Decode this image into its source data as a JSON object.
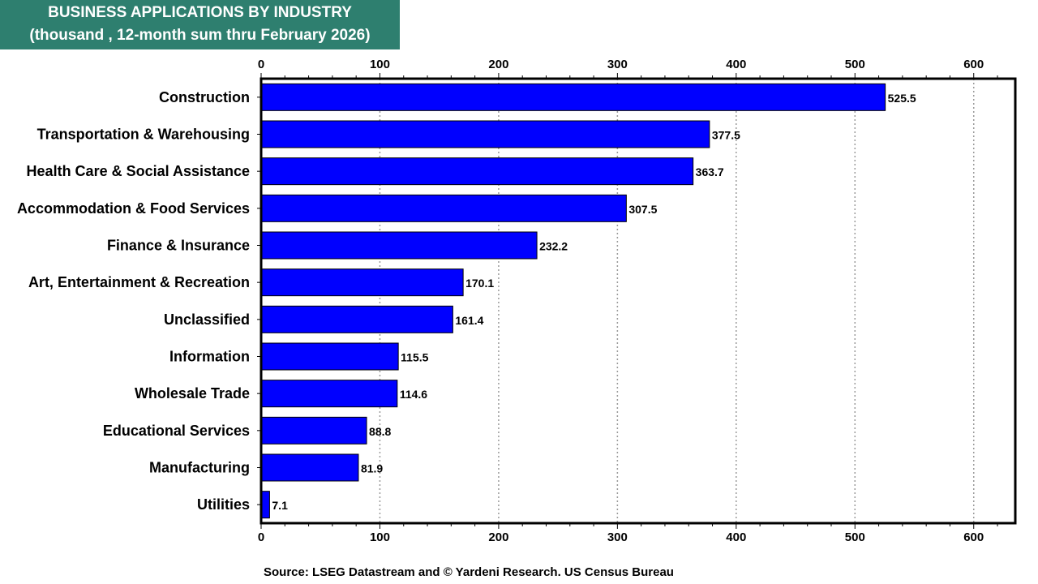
{
  "header": {
    "title_line1": "BUSINESS APPLICATIONS BY INDUSTRY",
    "title_line2": "(thousand , 12-month sum thru February 2026)",
    "title_bg_color": "#2e7f6f"
  },
  "footer": {
    "source": "Source: LSEG Datastream and © Yardeni Research. US Census Bureau"
  },
  "chart_data": {
    "type": "bar",
    "orientation": "horizontal",
    "categories": [
      "Construction",
      "Transportation & Warehousing",
      "Health Care & Social Assistance",
      "Accommodation & Food Services",
      "Finance & Insurance",
      "Art, Entertainment & Recreation",
      "Unclassified",
      "Information",
      "Wholesale Trade",
      "Educational Services",
      "Manufacturing",
      "Utilities"
    ],
    "values": [
      525.5,
      377.5,
      363.7,
      307.5,
      232.2,
      170.1,
      161.4,
      115.5,
      114.6,
      88.8,
      81.9,
      7.1
    ],
    "data_labels": [
      "525.5",
      "377.5",
      "363.7",
      "307.5",
      "232.2",
      "170.1",
      "161.4",
      "115.5",
      "114.6",
      "88.8",
      "81.9",
      "7.1"
    ],
    "xlim": [
      0,
      635
    ],
    "x_ticks": [
      0,
      100,
      200,
      300,
      400,
      500,
      600
    ],
    "x_tick_labels": [
      "0",
      "100",
      "200",
      "300",
      "400",
      "500",
      "600"
    ],
    "grid": true,
    "bar_color": "#0000ff",
    "bar_edge_color": "#000000"
  }
}
